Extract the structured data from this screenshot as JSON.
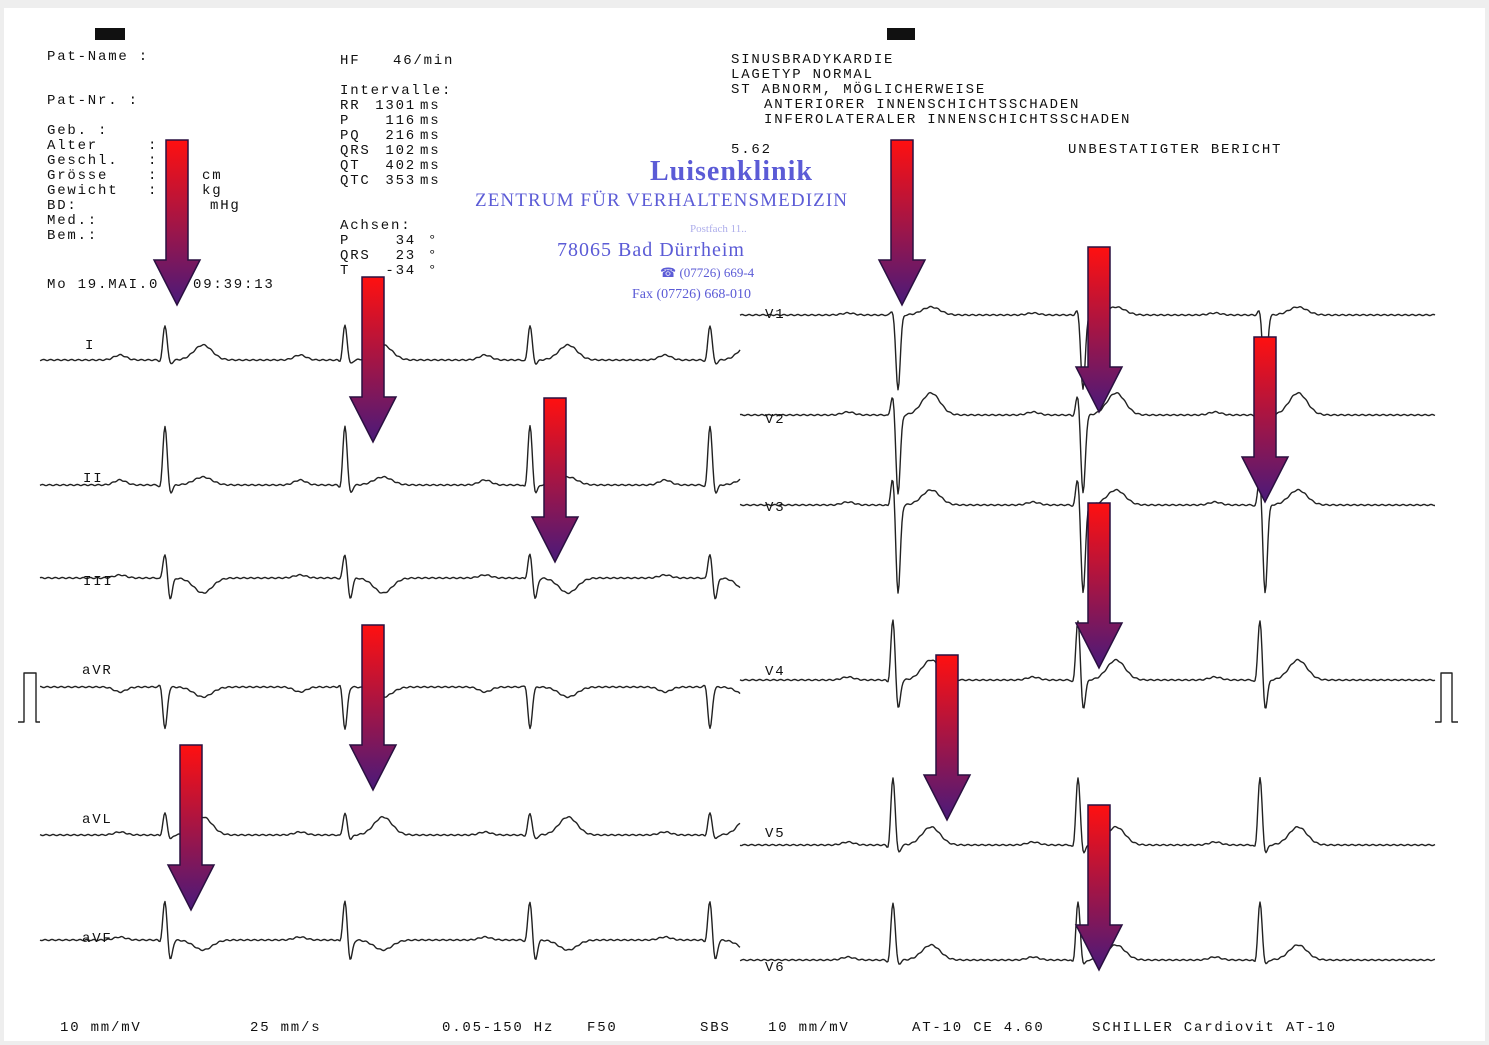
{
  "header_left": {
    "fields": [
      "Pat-Name :",
      "Pat-Nr.   :",
      "Geb. :",
      "Alter",
      "Geschl.",
      "Grösse",
      "Gewicht",
      "BD:",
      "Med.:",
      "Bem.:"
    ],
    "colons": [
      ":",
      ":",
      ":",
      ":"
    ],
    "units": [
      "cm",
      "kg",
      "mHg"
    ],
    "date": "Mo 19.MAI.0",
    "time": "09:39:13"
  },
  "measurements": {
    "hf_label": "HF",
    "hf_value": "46/min",
    "intervals_title": "Intervalle:",
    "intervals": [
      [
        "RR",
        "1301",
        "ms"
      ],
      [
        "P",
        "116",
        "ms"
      ],
      [
        "PQ",
        "216",
        "ms"
      ],
      [
        "QRS",
        "102",
        "ms"
      ],
      [
        "QT",
        "402",
        "ms"
      ],
      [
        "QTC",
        "353",
        "ms"
      ]
    ],
    "axes_title": "Achsen:",
    "axes": [
      [
        "P",
        "34",
        "°"
      ],
      [
        "QRS",
        "23",
        "°"
      ],
      [
        "T",
        "-34",
        "°"
      ]
    ]
  },
  "interpretation": {
    "lines": [
      "SINUSBRADYKARDIE",
      "LAGETYP NORMAL",
      "ST ABNORM, MÖGLICHERWEISE",
      "ANTERIORER INNENSCHICHTSSCHADEN",
      "INFEROLATERALER INNENSCHICHTSSCHADEN"
    ],
    "code": "5.62",
    "status": "UNBESTATIGTER BERICHT"
  },
  "stamp": {
    "name": "Luisenklinik",
    "subtitle": "ZENTRUM FÜR VERHALTENSMEDIZIN",
    "postbox": "Postfach 11..",
    "city": "78065 Bad Dürrheim",
    "phone": "☎ (07726) 669-4",
    "fax": "Fax (07726) 668-010"
  },
  "leads": [
    "I",
    "II",
    "III",
    "aVR",
    "aVL",
    "aVF",
    "V1",
    "V2",
    "V3",
    "V4",
    "V5",
    "V6"
  ],
  "footer": [
    "10 mm/mV",
    "25 mm/s",
    "0.05-150 Hz",
    "F50",
    "SBS",
    "10 mm/mV",
    "AT-10 CE 4.60",
    "SCHILLER Cardiovit AT-10"
  ]
}
